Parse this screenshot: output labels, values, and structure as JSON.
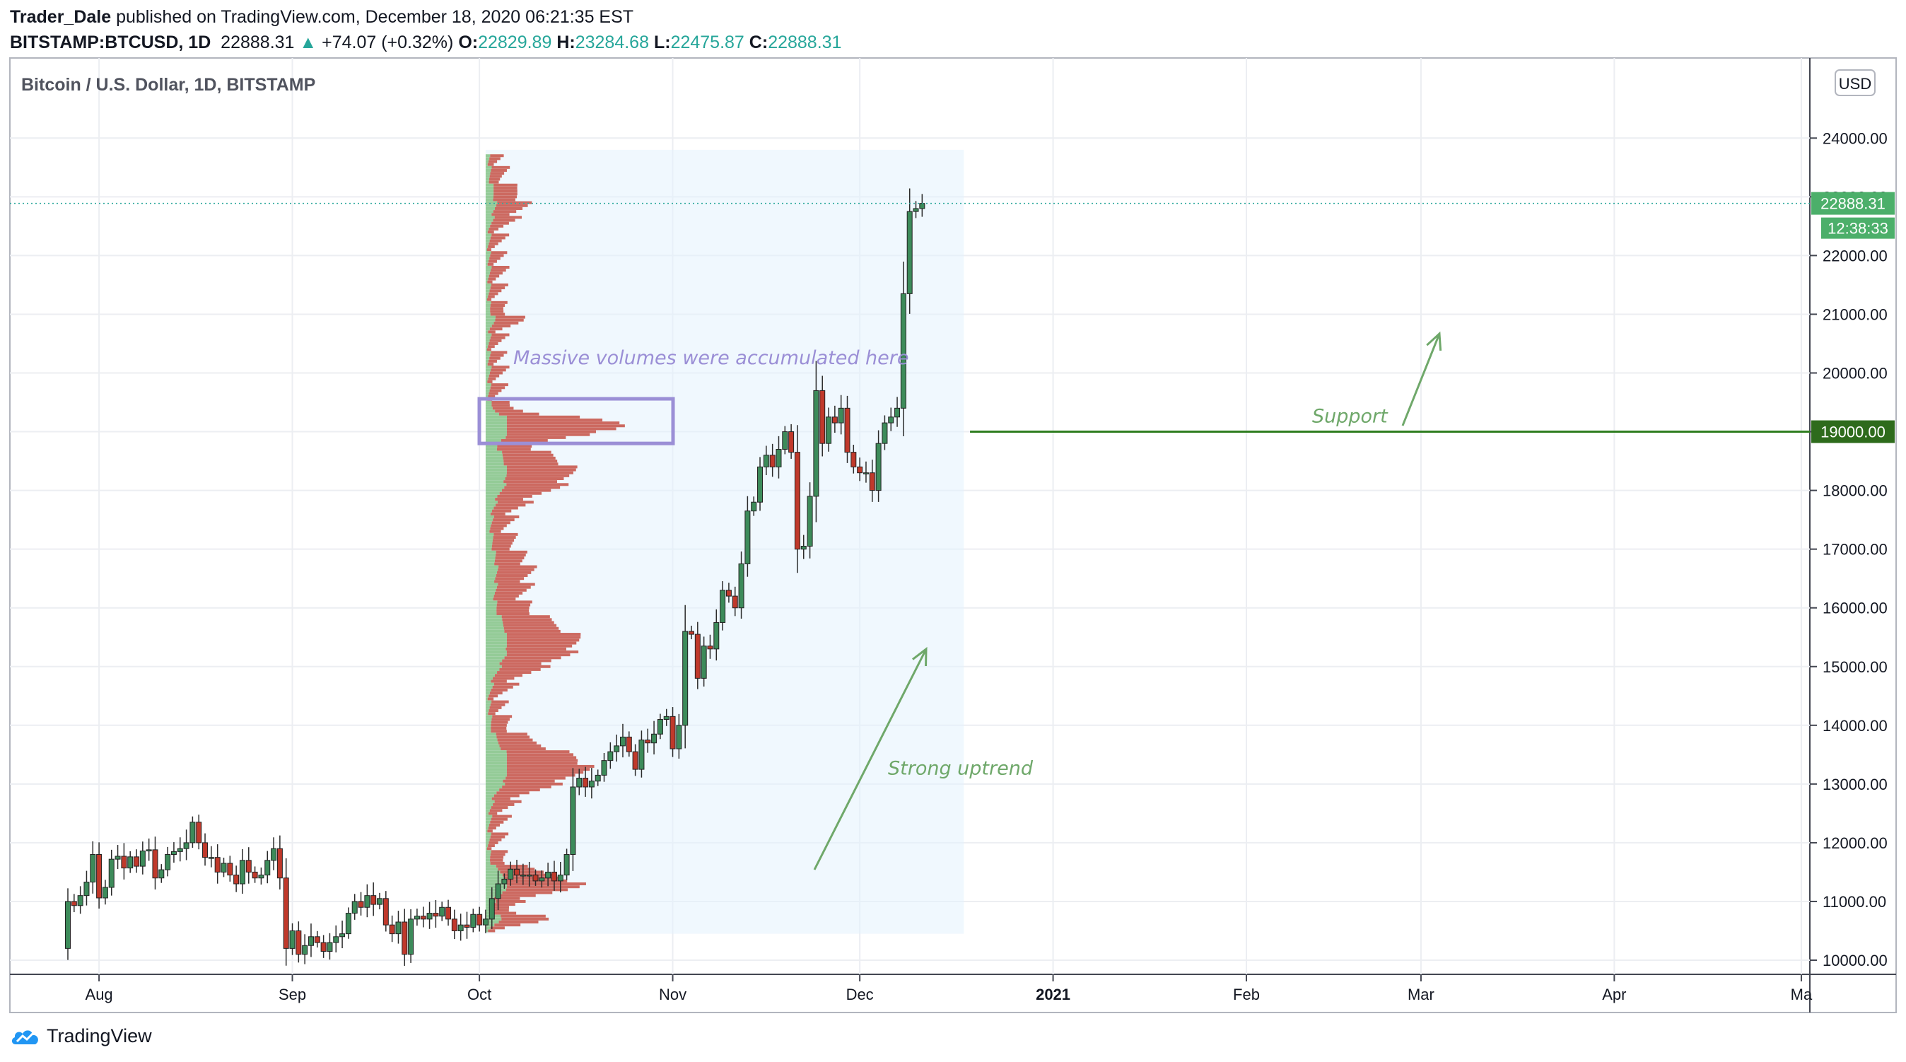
{
  "header": {
    "author": "Trader_Dale",
    "published_text": "published on TradingView.com, December 18, 2020 06:21:35 EST",
    "symbol": "BITSTAMP:BTCUSD, 1D",
    "last": "22888.31",
    "change": "+74.07 (+0.32%)",
    "o_label": "O:",
    "o": "22829.89",
    "h_label": "H:",
    "h": "23284.68",
    "l_label": "L:",
    "l": "22475.87",
    "c_label": "C:",
    "c": "22888.31"
  },
  "chart_title": "Bitcoin / U.S. Dollar, 1D, BITSTAMP",
  "currency_badge": "USD",
  "price_tag": "22888.31",
  "countdown_tag": "12:38:33",
  "support_tag": "19000.00",
  "annotations": {
    "volumes": "Massive volumes were accumulated here",
    "support": "Support",
    "uptrend": "Strong uptrend"
  },
  "footer": {
    "logo_text": "TradingView"
  },
  "colors": {
    "up": "#26a69a",
    "down": "#ef5350",
    "candle_up": "#3d8b5a",
    "candle_down": "#c0392b",
    "annotation_green": "#6fa86a",
    "annotation_purple": "#9b8fd6",
    "support_line": "#2e7d1f"
  },
  "chart_data": {
    "type": "candlestick",
    "title": "Bitcoin / U.S. Dollar, 1D, BITSTAMP",
    "ylim": [
      9800,
      25000
    ],
    "y_ticks": [
      "10000.00",
      "11000.00",
      "12000.00",
      "13000.00",
      "14000.00",
      "15000.00",
      "16000.00",
      "17000.00",
      "18000.00",
      "19000.00",
      "20000.00",
      "21000.00",
      "22000.00",
      "23000.00",
      "24000.00"
    ],
    "x_ticks": [
      "Aug",
      "Sep",
      "Oct",
      "Nov",
      "Dec",
      "2021",
      "Feb",
      "Mar",
      "Apr",
      "Ma"
    ],
    "x_tick_dates": [
      "2020-08-01",
      "2020-09-01",
      "2020-10-01",
      "2020-11-01",
      "2020-12-01",
      "2021-01-01",
      "2021-02-01",
      "2021-03-01",
      "2021-04-01",
      "2021-05-01"
    ],
    "support_level": 19000,
    "last_price": 22888.31,
    "start_date": "2020-07-27",
    "closes": [
      11000,
      10930,
      11100,
      11330,
      11800,
      11060,
      11240,
      11720,
      11770,
      11570,
      11760,
      11600,
      11860,
      11880,
      11400,
      11540,
      11800,
      11850,
      11900,
      12000,
      12350,
      12000,
      11750,
      11750,
      11500,
      11650,
      11450,
      11300,
      11700,
      11500,
      11400,
      11450,
      11700,
      11900,
      11400,
      10200,
      10500,
      10100,
      10250,
      10400,
      10300,
      10150,
      10300,
      10400,
      10450,
      10800,
      11000,
      10900,
      11100,
      10950,
      11050,
      10600,
      10450,
      10650,
      10100,
      10700,
      10750,
      10700,
      10800,
      10750,
      10900,
      10700,
      10500,
      10600,
      10560,
      10780,
      10600,
      10700,
      11050,
      11300,
      11380,
      11550,
      11450,
      11450,
      11450,
      11350,
      11400,
      11500,
      11350,
      11450,
      11800,
      12950,
      13100,
      12950,
      13050,
      13150,
      13400,
      13550,
      13650,
      13800,
      13550,
      13250,
      13750,
      13700,
      13850,
      14100,
      14150,
      13600,
      14000,
      15600,
      15550,
      14800,
      15350,
      15300,
      15750,
      16300,
      16200,
      16000,
      16750,
      17650,
      17800,
      18400,
      18600,
      18400,
      18700,
      19000,
      18650,
      17000,
      17050,
      17900,
      19700,
      18800,
      19250,
      19150,
      19400,
      18650,
      18400,
      18300,
      18300,
      18000,
      18800,
      19150,
      19250,
      19400,
      21350,
      22750,
      22800,
      22888
    ]
  }
}
